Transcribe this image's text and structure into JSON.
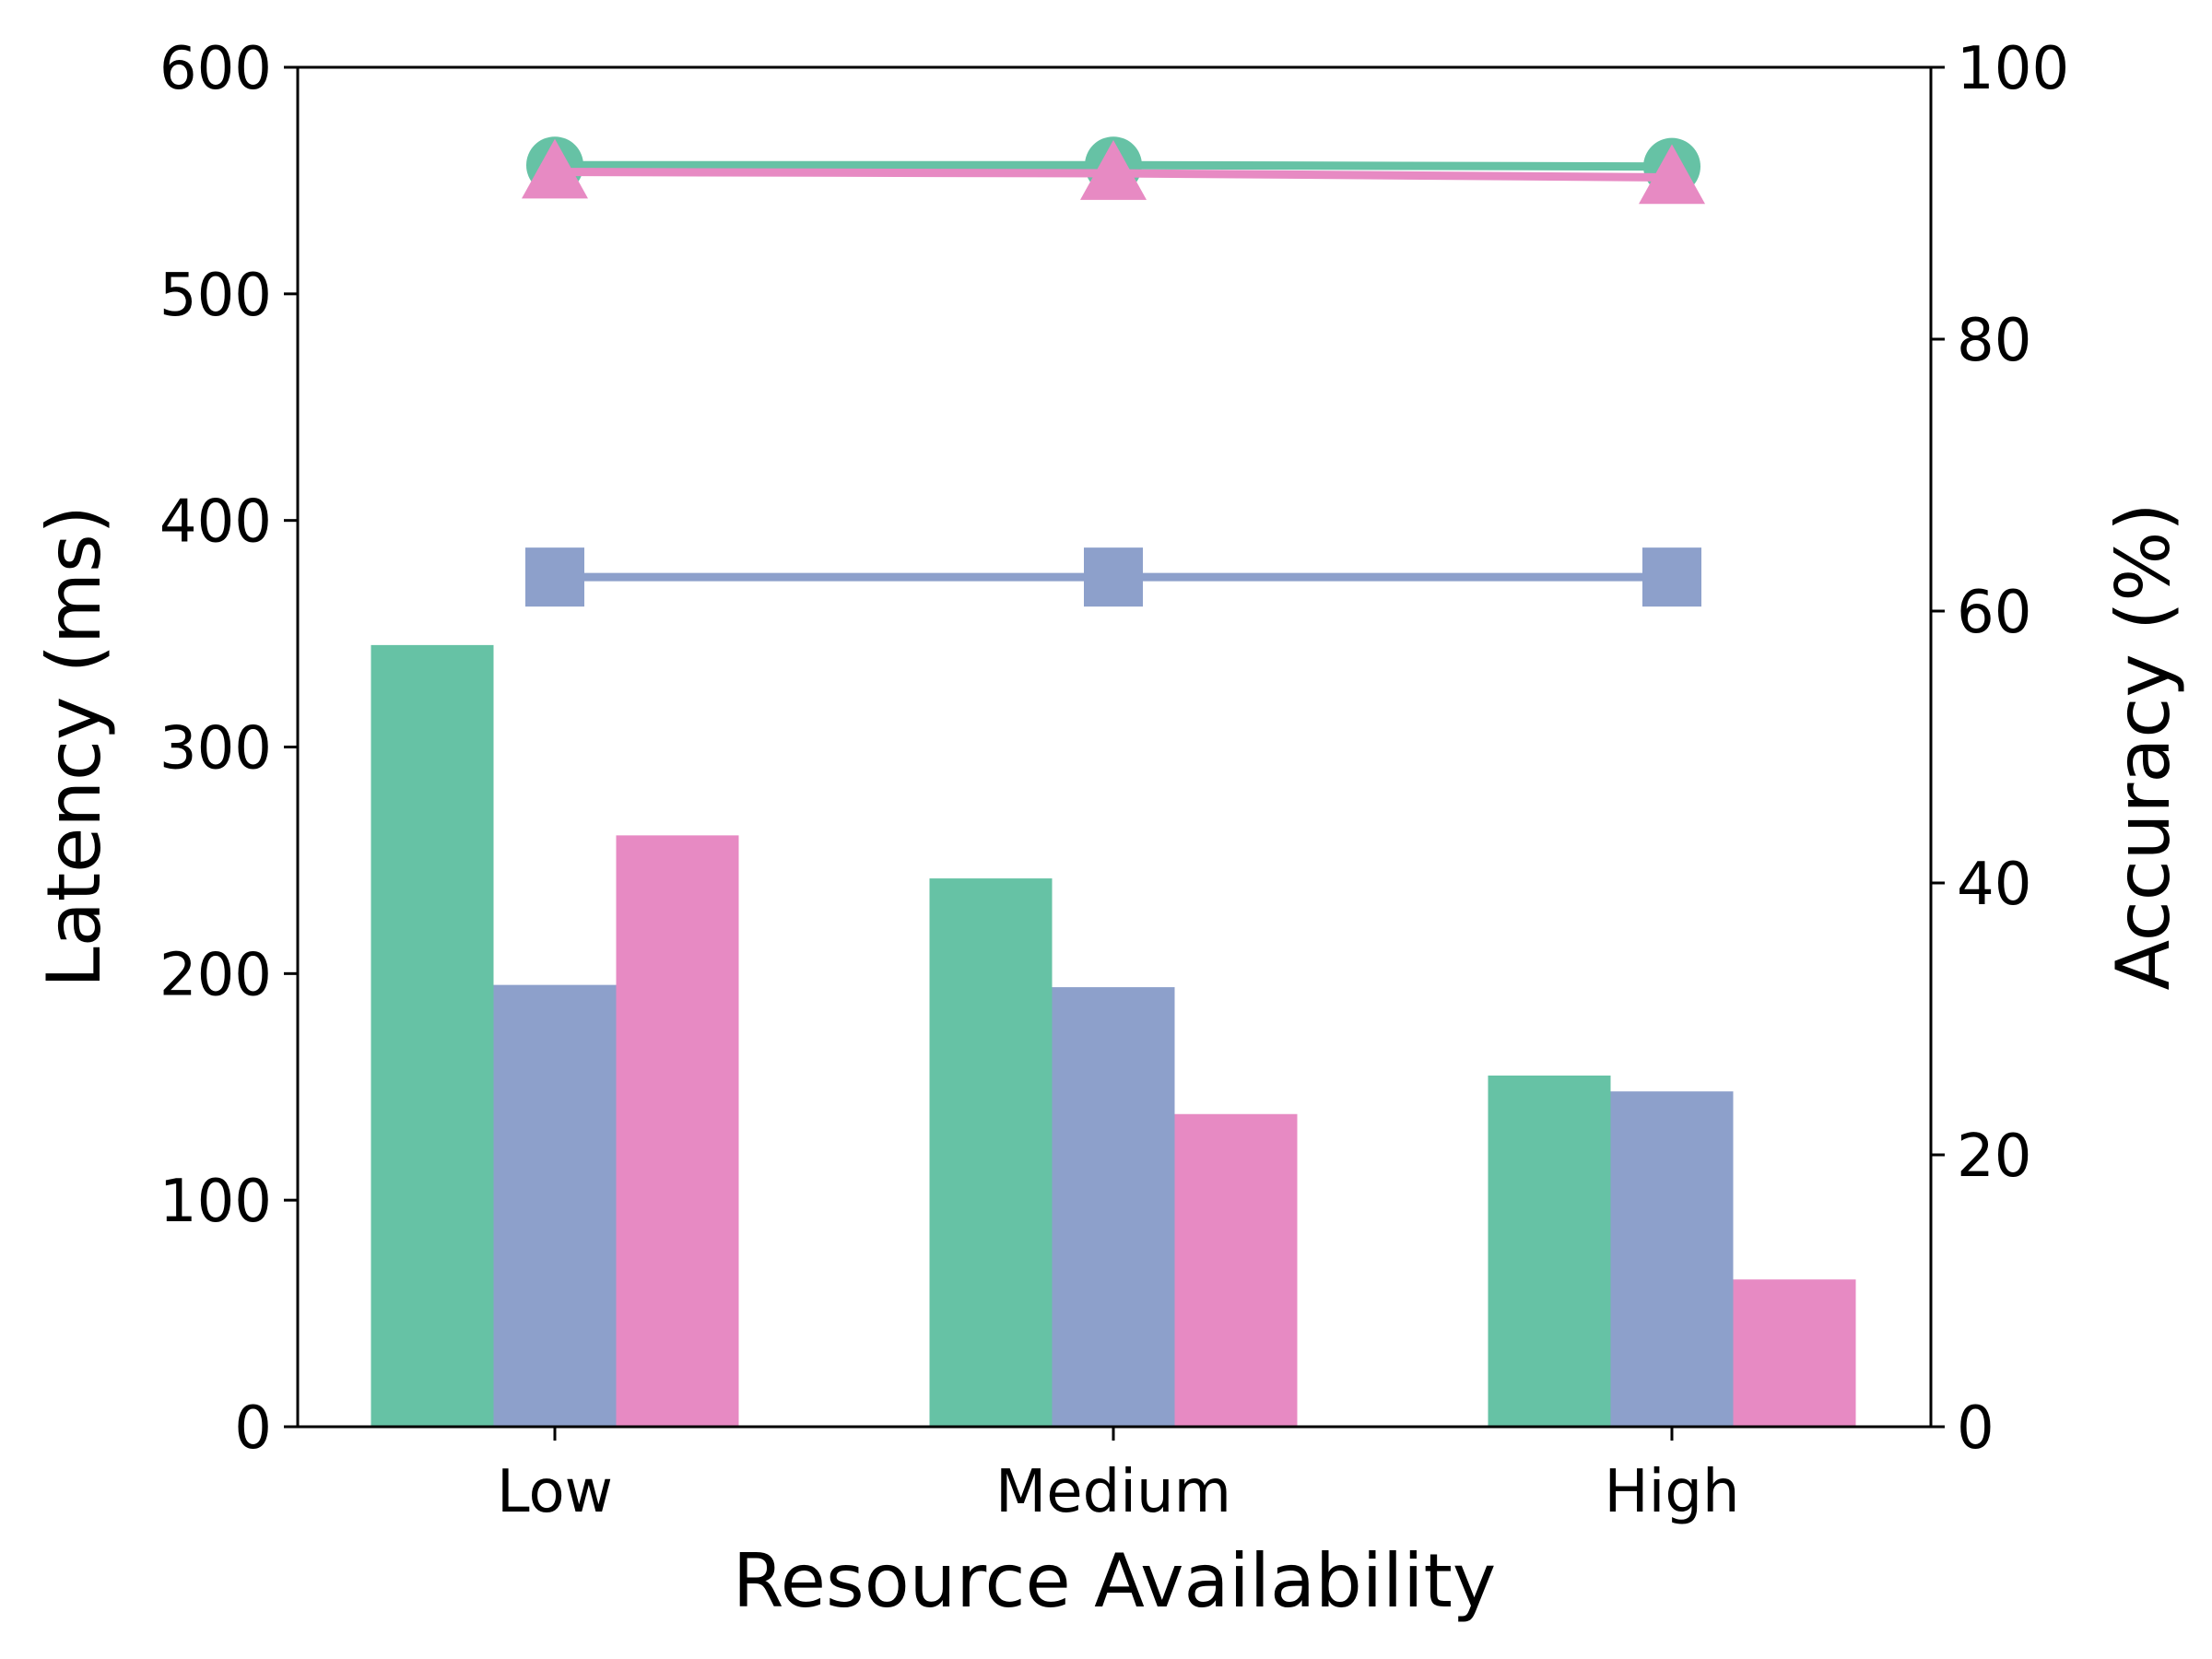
{
  "chart_data": {
    "type": "bar",
    "title": "",
    "xlabel": "Resource Availability",
    "ylabel": "Latency (ms)",
    "y2label": "Accuracy (%)",
    "categories": [
      "Low",
      "Medium",
      "High"
    ],
    "ylim": [
      0,
      600
    ],
    "y2lim": [
      0,
      100
    ],
    "yticks": [
      0,
      100,
      200,
      300,
      400,
      500,
      600
    ],
    "y2ticks": [
      0,
      20,
      40,
      60,
      80,
      100
    ],
    "grid": false,
    "legend": "none",
    "bar_series": [
      {
        "values": [
          345,
          242,
          155
        ],
        "color": "#66c2a5"
      },
      {
        "values": [
          195,
          194,
          148
        ],
        "color": "#8da0cb"
      },
      {
        "values": [
          261,
          138,
          65
        ],
        "color": "#e78ac3"
      }
    ],
    "line_series": [
      {
        "axis": "right",
        "marker": "circle",
        "values": [
          92.8,
          92.8,
          92.7
        ],
        "color": "#66c2a5"
      },
      {
        "axis": "right",
        "marker": "square",
        "values": [
          62.5,
          62.5,
          62.5
        ],
        "color": "#8da0cb"
      },
      {
        "axis": "right",
        "marker": "triangle",
        "values": [
          92.3,
          92.2,
          91.9
        ],
        "color": "#e78ac3"
      }
    ]
  }
}
